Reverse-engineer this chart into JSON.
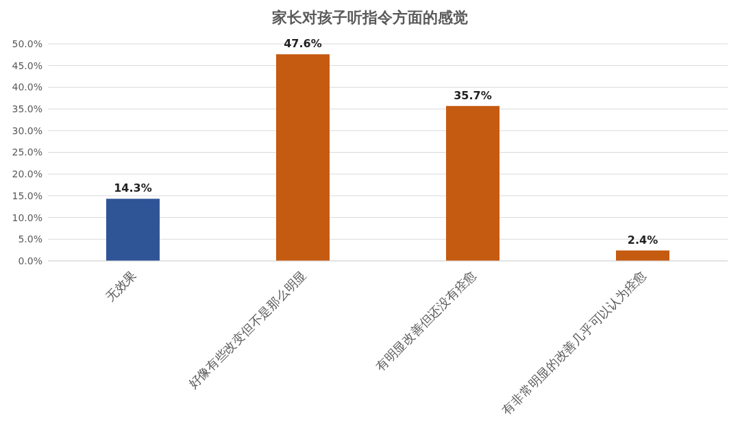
{
  "chart_data": {
    "type": "bar",
    "title": "家长对孩子听指令方面的感觉",
    "categories": [
      "无效果",
      "好像有些改变但不是那么明显",
      "有明显改善但还没有痊愈",
      "有非常明显的改善几乎可以认为痊愈"
    ],
    "values": [
      14.3,
      47.6,
      35.7,
      2.4
    ],
    "colors": [
      "#2f5597",
      "#c55a11",
      "#c55a11",
      "#c55a11"
    ],
    "value_labels": [
      "14.3%",
      "47.6%",
      "35.7%",
      "2.4%"
    ],
    "ylim": [
      0,
      50
    ],
    "yticks": [
      {
        "value": 0,
        "label": "0.0%"
      },
      {
        "value": 5,
        "label": "5.0%"
      },
      {
        "value": 10,
        "label": "10.0%"
      },
      {
        "value": 15,
        "label": "15.0%"
      },
      {
        "value": 20,
        "label": "20.0%"
      },
      {
        "value": 25,
        "label": "25.0%"
      },
      {
        "value": 30,
        "label": "30.0%"
      },
      {
        "value": 35,
        "label": "35.0%"
      },
      {
        "value": 40,
        "label": "40.0%"
      },
      {
        "value": 45,
        "label": "45.0%"
      },
      {
        "value": 50,
        "label": "50.0%"
      }
    ],
    "grid": "y"
  }
}
